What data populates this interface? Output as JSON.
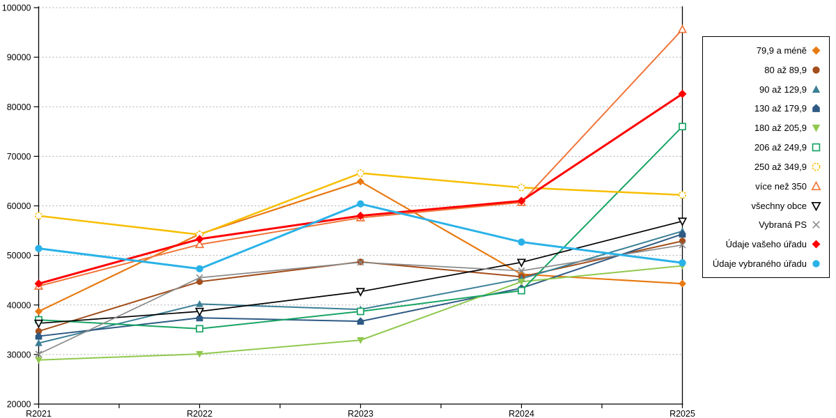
{
  "chart_data": {
    "type": "line",
    "title": "",
    "xlabel": "",
    "ylabel": "",
    "x": [
      "R2021",
      "R2022",
      "R2023",
      "R2024",
      "R2025"
    ],
    "ylim": [
      20000,
      100000
    ],
    "y_ticks": [
      20000,
      30000,
      40000,
      50000,
      60000,
      70000,
      80000,
      90000,
      100000
    ],
    "y_tick_labels": [
      "20000",
      "30000",
      "40000",
      "50000",
      "60000",
      "70000",
      "80000",
      "90000",
      "100000"
    ],
    "grid": "horizontal-dotted",
    "legend_position": "right",
    "series": [
      {
        "name": "79,9 a méně",
        "color": "#E87A12",
        "marker": "diamond",
        "filled": true,
        "dashed": false,
        "width": 2.2,
        "values": [
          38700,
          54300,
          64900,
          46200,
          44300
        ]
      },
      {
        "name": "80 až 89,9",
        "color": "#A34E1B",
        "marker": "circle",
        "filled": true,
        "dashed": false,
        "width": 2,
        "values": [
          34700,
          44700,
          48700,
          45700,
          52900
        ]
      },
      {
        "name": "90 až 129,9",
        "color": "#3A7F95",
        "marker": "triangle-up",
        "filled": true,
        "dashed": false,
        "width": 2,
        "values": [
          32300,
          40200,
          39100,
          45300,
          54900
        ]
      },
      {
        "name": "130 až 179,9",
        "color": "#2E5A84",
        "marker": "pentagon",
        "filled": true,
        "dashed": false,
        "width": 2,
        "values": [
          33700,
          37400,
          36700,
          43400,
          54300
        ]
      },
      {
        "name": "180 až 205,9",
        "color": "#90C84E",
        "marker": "triangle-down",
        "filled": true,
        "dashed": false,
        "width": 2,
        "values": [
          28900,
          30100,
          32900,
          44700,
          47900
        ]
      },
      {
        "name": "206 až 249,9",
        "color": "#17A464",
        "marker": "square",
        "filled": false,
        "dashed": false,
        "width": 2,
        "values": [
          37000,
          35200,
          38700,
          42900,
          76000
        ]
      },
      {
        "name": "250 až 349,9",
        "color": "#F7BE00",
        "marker": "circle",
        "filled": false,
        "dashed": true,
        "width": 2.5,
        "values": [
          58000,
          54200,
          66600,
          63700,
          62200
        ]
      },
      {
        "name": "více než 350",
        "color": "#F07438",
        "marker": "triangle-up",
        "filled": false,
        "dashed": false,
        "width": 2,
        "values": [
          43800,
          52200,
          57600,
          60700,
          95600
        ]
      },
      {
        "name": "všechny obce",
        "color": "#000000",
        "marker": "triangle-down",
        "filled": false,
        "dashed": false,
        "width": 1.7,
        "values": [
          36300,
          38700,
          42700,
          48600,
          56900
        ]
      },
      {
        "name": "Vybraná PS",
        "color": "#8A8A8A",
        "marker": "x",
        "filled": false,
        "dashed": false,
        "width": 1.7,
        "values": [
          30100,
          45500,
          48600,
          46900,
          52100
        ]
      },
      {
        "name": "Údaje vašeho úřadu",
        "color": "#FE0000",
        "marker": "diamond",
        "filled": true,
        "dashed": false,
        "width": 3,
        "values": [
          44300,
          53300,
          58000,
          61000,
          82600
        ]
      },
      {
        "name": "Údaje vybraného úřadu",
        "color": "#29B2E8",
        "marker": "circle",
        "filled": true,
        "dashed": false,
        "width": 3,
        "values": [
          51400,
          47300,
          60400,
          52700,
          48500
        ]
      }
    ]
  }
}
